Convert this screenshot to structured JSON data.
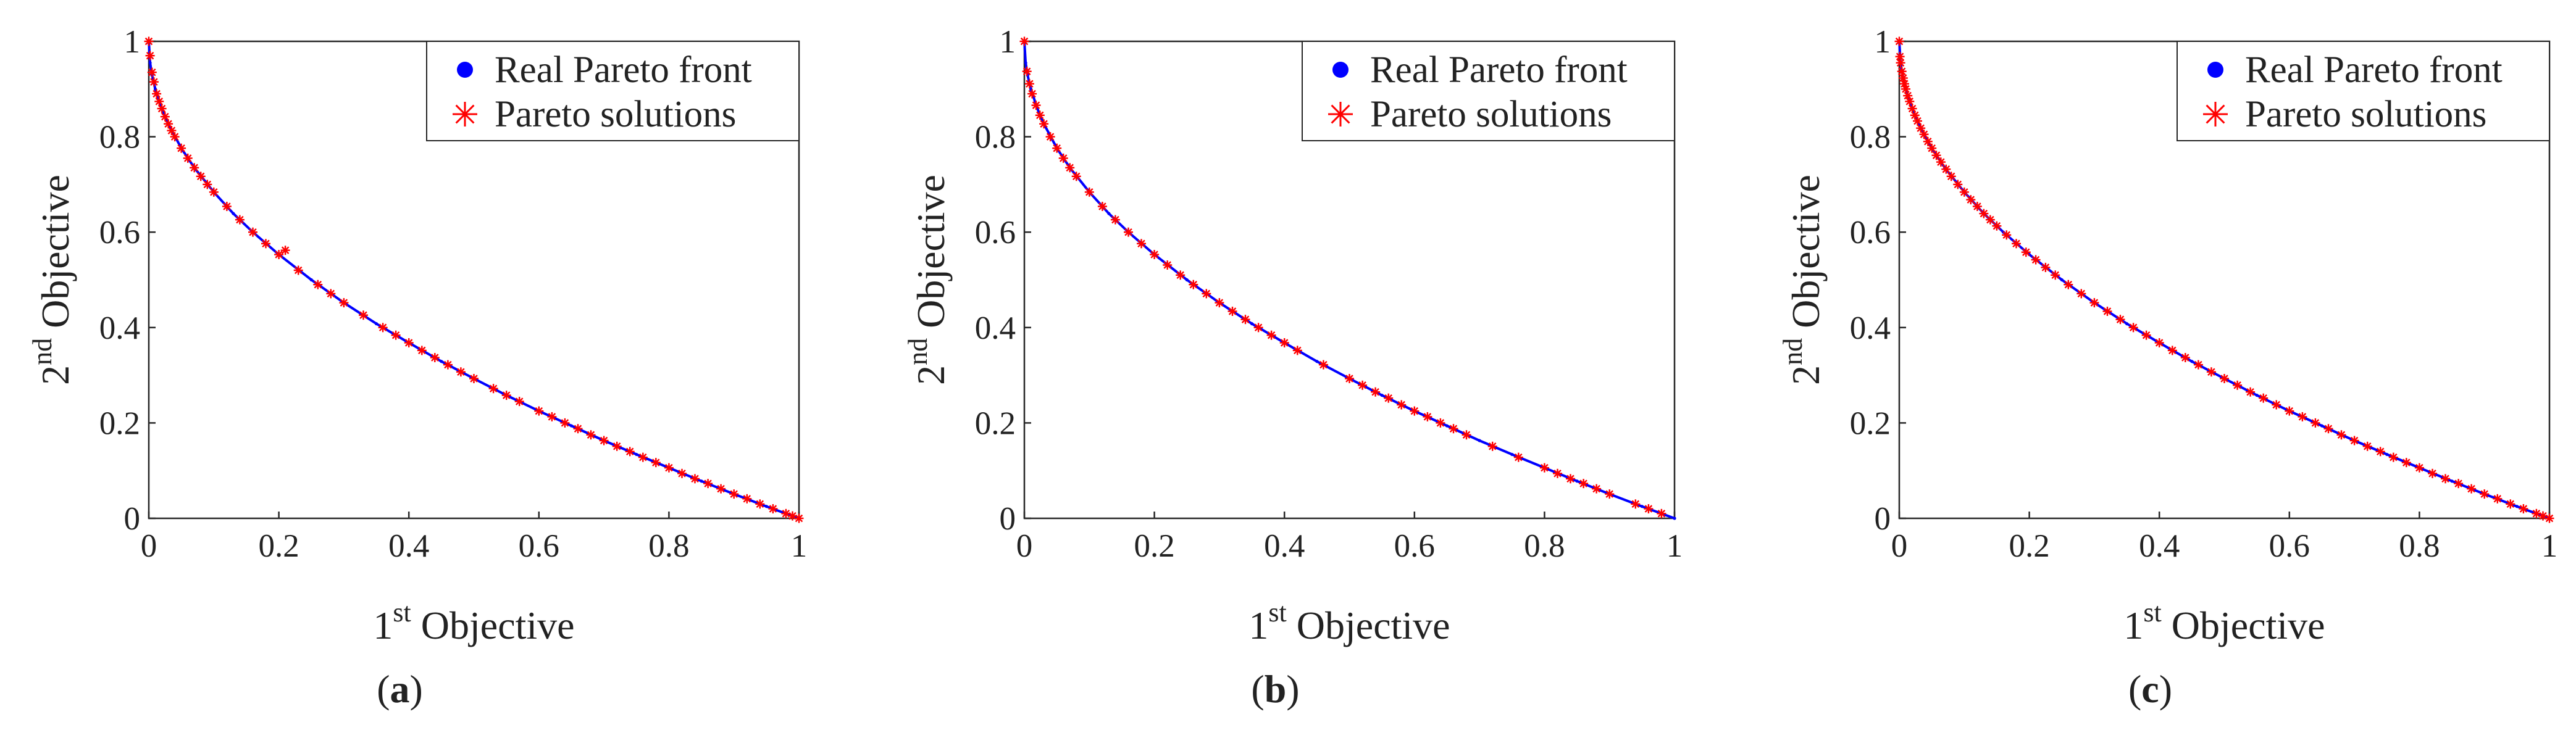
{
  "figure": {
    "colors": {
      "real_front": "#0000ff",
      "solutions": "#ff0000",
      "axes": "#262626",
      "background": "#ffffff"
    }
  },
  "chart_data": [
    {
      "type": "scatter",
      "panel_label": "(a)",
      "caption": {
        "open": "(",
        "letter": "a",
        "close": ")"
      },
      "xlabel": {
        "sup": "st",
        "prefix": "1",
        "text": " Objective"
      },
      "ylabel": {
        "sup": "nd",
        "prefix": "2",
        "text": " Objective"
      },
      "xlim": [
        0,
        1
      ],
      "ylim": [
        0,
        1
      ],
      "xticks": [
        0,
        0.2,
        0.4,
        0.6,
        0.8,
        1
      ],
      "yticks": [
        0,
        0.2,
        0.4,
        0.6,
        0.8,
        1
      ],
      "tick_labels": [
        "0",
        "0.2",
        "0.4",
        "0.6",
        "0.8",
        "1"
      ],
      "grid": false,
      "legend": {
        "placement": "top-right",
        "entries": [
          "Real Pareto front",
          "Pareto solutions"
        ]
      },
      "series": [
        {
          "name": "Real Pareto front",
          "marker": "dot",
          "color": "#0000ff",
          "front": "y = 1 - sqrt(x)",
          "x": [
            0,
            0.002,
            0.005,
            0.01,
            0.02,
            0.03,
            0.05,
            0.07,
            0.1,
            0.13,
            0.16,
            0.2,
            0.25,
            0.3,
            0.35,
            0.4,
            0.45,
            0.5,
            0.55,
            0.6,
            0.65,
            0.7,
            0.75,
            0.8,
            0.85,
            0.9,
            0.95,
            1
          ],
          "y": [
            1,
            0.955,
            0.929,
            0.9,
            0.859,
            0.827,
            0.776,
            0.735,
            0.684,
            0.639,
            0.6,
            0.553,
            0.5,
            0.452,
            0.408,
            0.368,
            0.329,
            0.293,
            0.258,
            0.225,
            0.194,
            0.163,
            0.134,
            0.106,
            0.078,
            0.051,
            0.025,
            0
          ]
        },
        {
          "name": "Pareto solutions",
          "marker": "asterisk",
          "color": "#ff0000",
          "x": [
            0,
            0.002,
            0.005,
            0.008,
            0.012,
            0.016,
            0.02,
            0.025,
            0.03,
            0.035,
            0.04,
            0.05,
            0.06,
            0.07,
            0.08,
            0.09,
            0.1,
            0.12,
            0.14,
            0.16,
            0.18,
            0.2,
            0.21,
            0.23,
            0.26,
            0.28,
            0.3,
            0.33,
            0.36,
            0.38,
            0.4,
            0.42,
            0.44,
            0.46,
            0.48,
            0.5,
            0.53,
            0.55,
            0.57,
            0.6,
            0.62,
            0.64,
            0.66,
            0.68,
            0.7,
            0.72,
            0.74,
            0.76,
            0.78,
            0.8,
            0.82,
            0.84,
            0.86,
            0.88,
            0.9,
            0.92,
            0.94,
            0.96,
            0.98,
            0.99,
            1
          ],
          "y": [
            1,
            0.97,
            0.935,
            0.915,
            0.89,
            0.874,
            0.859,
            0.842,
            0.827,
            0.813,
            0.8,
            0.776,
            0.755,
            0.735,
            0.717,
            0.7,
            0.684,
            0.654,
            0.626,
            0.6,
            0.576,
            0.553,
            0.562,
            0.52,
            0.49,
            0.471,
            0.452,
            0.426,
            0.4,
            0.384,
            0.368,
            0.352,
            0.337,
            0.322,
            0.307,
            0.293,
            0.272,
            0.258,
            0.245,
            0.225,
            0.213,
            0.2,
            0.188,
            0.175,
            0.163,
            0.151,
            0.14,
            0.128,
            0.117,
            0.106,
            0.094,
            0.083,
            0.073,
            0.062,
            0.051,
            0.041,
            0.03,
            0.02,
            0.01,
            0.005,
            0
          ]
        }
      ]
    },
    {
      "type": "scatter",
      "panel_label": "(b)",
      "caption": {
        "open": "(",
        "letter": "b",
        "close": ")"
      },
      "xlabel": {
        "sup": "st",
        "prefix": "1",
        "text": " Objective"
      },
      "ylabel": {
        "sup": "nd",
        "prefix": "2",
        "text": " Objective"
      },
      "xlim": [
        0,
        1
      ],
      "ylim": [
        0,
        1
      ],
      "xticks": [
        0,
        0.2,
        0.4,
        0.6,
        0.8,
        1
      ],
      "yticks": [
        0,
        0.2,
        0.4,
        0.6,
        0.8,
        1
      ],
      "tick_labels": [
        "0",
        "0.2",
        "0.4",
        "0.6",
        "0.8",
        "1"
      ],
      "grid": false,
      "legend": {
        "placement": "top-right",
        "entries": [
          "Real Pareto front",
          "Pareto solutions"
        ]
      },
      "series": [
        {
          "name": "Real Pareto front",
          "marker": "dot",
          "color": "#0000ff",
          "front": "y = 1 - sqrt(x)",
          "x": [
            0,
            0.002,
            0.005,
            0.01,
            0.02,
            0.03,
            0.05,
            0.07,
            0.1,
            0.13,
            0.16,
            0.2,
            0.25,
            0.3,
            0.35,
            0.4,
            0.45,
            0.5,
            0.55,
            0.6,
            0.65,
            0.7,
            0.75,
            0.8,
            0.85,
            0.9,
            0.95,
            1
          ],
          "y": [
            1,
            0.955,
            0.929,
            0.9,
            0.859,
            0.827,
            0.776,
            0.735,
            0.684,
            0.639,
            0.6,
            0.553,
            0.5,
            0.452,
            0.408,
            0.368,
            0.329,
            0.293,
            0.258,
            0.225,
            0.194,
            0.163,
            0.134,
            0.106,
            0.078,
            0.051,
            0.025,
            0
          ]
        },
        {
          "name": "Pareto solutions",
          "marker": "asterisk",
          "color": "#ff0000",
          "x": [
            0,
            0.004,
            0.008,
            0.012,
            0.018,
            0.024,
            0.03,
            0.04,
            0.05,
            0.06,
            0.07,
            0.08,
            0.1,
            0.12,
            0.14,
            0.16,
            0.18,
            0.2,
            0.22,
            0.24,
            0.26,
            0.28,
            0.3,
            0.32,
            0.34,
            0.36,
            0.38,
            0.4,
            0.42,
            0.46,
            0.5,
            0.52,
            0.54,
            0.56,
            0.58,
            0.6,
            0.62,
            0.64,
            0.66,
            0.68,
            0.72,
            0.76,
            0.8,
            0.82,
            0.84,
            0.86,
            0.88,
            0.9,
            0.94,
            0.96,
            0.98
          ],
          "y": [
            1,
            0.937,
            0.911,
            0.89,
            0.866,
            0.845,
            0.827,
            0.8,
            0.776,
            0.755,
            0.735,
            0.717,
            0.684,
            0.654,
            0.626,
            0.6,
            0.576,
            0.553,
            0.531,
            0.51,
            0.49,
            0.471,
            0.452,
            0.434,
            0.417,
            0.4,
            0.384,
            0.368,
            0.352,
            0.322,
            0.293,
            0.279,
            0.265,
            0.252,
            0.238,
            0.225,
            0.213,
            0.2,
            0.188,
            0.175,
            0.151,
            0.128,
            0.106,
            0.094,
            0.083,
            0.073,
            0.062,
            0.051,
            0.03,
            0.02,
            0.01
          ]
        }
      ]
    },
    {
      "type": "scatter",
      "panel_label": "(c)",
      "caption": {
        "open": "(",
        "letter": "c",
        "close": ")"
      },
      "xlabel": {
        "sup": "st",
        "prefix": "1",
        "text": " Objective"
      },
      "ylabel": {
        "sup": "nd",
        "prefix": "2",
        "text": " Objective"
      },
      "xlim": [
        0,
        1
      ],
      "ylim": [
        0,
        1
      ],
      "xticks": [
        0,
        0.2,
        0.4,
        0.6,
        0.8,
        1
      ],
      "yticks": [
        0,
        0.2,
        0.4,
        0.6,
        0.8,
        1
      ],
      "tick_labels": [
        "0",
        "0.2",
        "0.4",
        "0.6",
        "0.8",
        "1"
      ],
      "grid": false,
      "legend": {
        "placement": "top-right",
        "entries": [
          "Real Pareto front",
          "Pareto solutions"
        ]
      },
      "series": [
        {
          "name": "Real Pareto front",
          "marker": "dot",
          "color": "#0000ff",
          "front": "y = 1 - sqrt(x)",
          "x": [
            0,
            0.002,
            0.005,
            0.01,
            0.02,
            0.03,
            0.05,
            0.07,
            0.1,
            0.13,
            0.16,
            0.2,
            0.25,
            0.3,
            0.35,
            0.4,
            0.45,
            0.5,
            0.55,
            0.6,
            0.65,
            0.7,
            0.75,
            0.8,
            0.85,
            0.9,
            0.95,
            1
          ],
          "y": [
            1,
            0.955,
            0.929,
            0.9,
            0.859,
            0.827,
            0.776,
            0.735,
            0.684,
            0.639,
            0.6,
            0.553,
            0.5,
            0.452,
            0.408,
            0.368,
            0.329,
            0.293,
            0.258,
            0.225,
            0.194,
            0.163,
            0.134,
            0.106,
            0.078,
            0.051,
            0.025,
            0
          ]
        },
        {
          "name": "Pareto solutions",
          "marker": "asterisk",
          "color": "#ff0000",
          "x": [
            0,
            0.001,
            0.002,
            0.004,
            0.006,
            0.008,
            0.01,
            0.013,
            0.016,
            0.02,
            0.024,
            0.028,
            0.033,
            0.038,
            0.044,
            0.05,
            0.057,
            0.064,
            0.072,
            0.08,
            0.09,
            0.1,
            0.11,
            0.12,
            0.13,
            0.14,
            0.15,
            0.165,
            0.18,
            0.195,
            0.21,
            0.225,
            0.24,
            0.26,
            0.28,
            0.3,
            0.32,
            0.34,
            0.36,
            0.38,
            0.4,
            0.42,
            0.44,
            0.46,
            0.48,
            0.5,
            0.52,
            0.54,
            0.56,
            0.58,
            0.6,
            0.62,
            0.64,
            0.66,
            0.68,
            0.7,
            0.72,
            0.74,
            0.76,
            0.78,
            0.8,
            0.82,
            0.84,
            0.86,
            0.88,
            0.9,
            0.92,
            0.94,
            0.96,
            0.98,
            0.99,
            1
          ],
          "y": [
            1,
            0.968,
            0.955,
            0.937,
            0.923,
            0.911,
            0.9,
            0.886,
            0.874,
            0.859,
            0.845,
            0.833,
            0.818,
            0.805,
            0.79,
            0.776,
            0.761,
            0.747,
            0.732,
            0.717,
            0.7,
            0.684,
            0.668,
            0.654,
            0.639,
            0.626,
            0.613,
            0.594,
            0.576,
            0.558,
            0.542,
            0.526,
            0.51,
            0.49,
            0.471,
            0.452,
            0.434,
            0.417,
            0.4,
            0.384,
            0.368,
            0.352,
            0.337,
            0.322,
            0.307,
            0.293,
            0.279,
            0.265,
            0.252,
            0.238,
            0.225,
            0.213,
            0.2,
            0.188,
            0.175,
            0.163,
            0.151,
            0.14,
            0.128,
            0.117,
            0.106,
            0.094,
            0.083,
            0.073,
            0.062,
            0.051,
            0.041,
            0.03,
            0.02,
            0.01,
            0.005,
            0
          ]
        }
      ]
    }
  ]
}
